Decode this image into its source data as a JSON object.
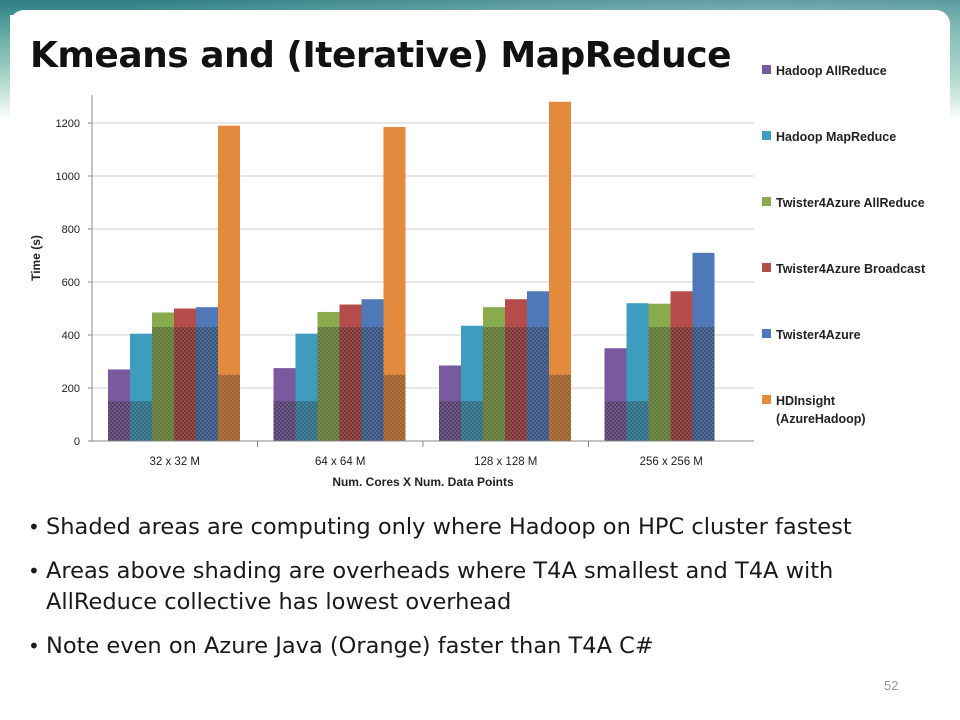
{
  "slide": {
    "title": "Kmeans and (Iterative) MapReduce",
    "page_number": "52",
    "bullets": [
      "Shaded areas are computing only where Hadoop on HPC cluster fastest",
      "Areas above shading are overheads where T4A smallest and T4A with AllReduce collective has lowest overhead",
      "Note even on Azure Java (Orange) faster than T4A C#"
    ]
  },
  "chart_data": {
    "type": "bar",
    "categories": [
      "32 x 32 M",
      "64 x 64 M",
      "128 x 128 M",
      "256 x 256 M"
    ],
    "xlabel": "Num. Cores X Num. Data Points",
    "ylabel": "Time (s)",
    "ylim": [
      0,
      1400
    ],
    "yticks": [
      0,
      200,
      400,
      600,
      800,
      1000,
      1200
    ],
    "grid": true,
    "legend_position": "right",
    "series": [
      {
        "name": "Hadoop AllReduce",
        "color": "#7a5a9e",
        "values": [
          270,
          275,
          285,
          350
        ],
        "shaded": [
          150,
          150,
          150,
          150
        ]
      },
      {
        "name": "Hadoop MapReduce",
        "color": "#3e9cbf",
        "values": [
          405,
          405,
          435,
          520
        ],
        "shaded": [
          150,
          150,
          150,
          150
        ]
      },
      {
        "name": "Twister4Azure AllReduce",
        "color": "#8aaa4e",
        "values": [
          485,
          487,
          505,
          518
        ],
        "shaded": [
          430,
          430,
          430,
          430
        ]
      },
      {
        "name": "Twister4Azure Broadcast",
        "color": "#b34c4a",
        "values": [
          500,
          515,
          535,
          565
        ],
        "shaded": [
          430,
          430,
          430,
          430
        ]
      },
      {
        "name": "Twister4Azure",
        "color": "#4f78b8",
        "values": [
          505,
          535,
          565,
          710
        ],
        "shaded": [
          430,
          430,
          430,
          430
        ]
      },
      {
        "name": "HDInsight (AzureHadoop)",
        "label_lines": [
          "HDInsight",
          "(AzureHadoop)"
        ],
        "color": "#e48a3c",
        "values": [
          1190,
          1185,
          1280,
          null
        ],
        "shaded": [
          250,
          250,
          250,
          null
        ]
      }
    ]
  }
}
